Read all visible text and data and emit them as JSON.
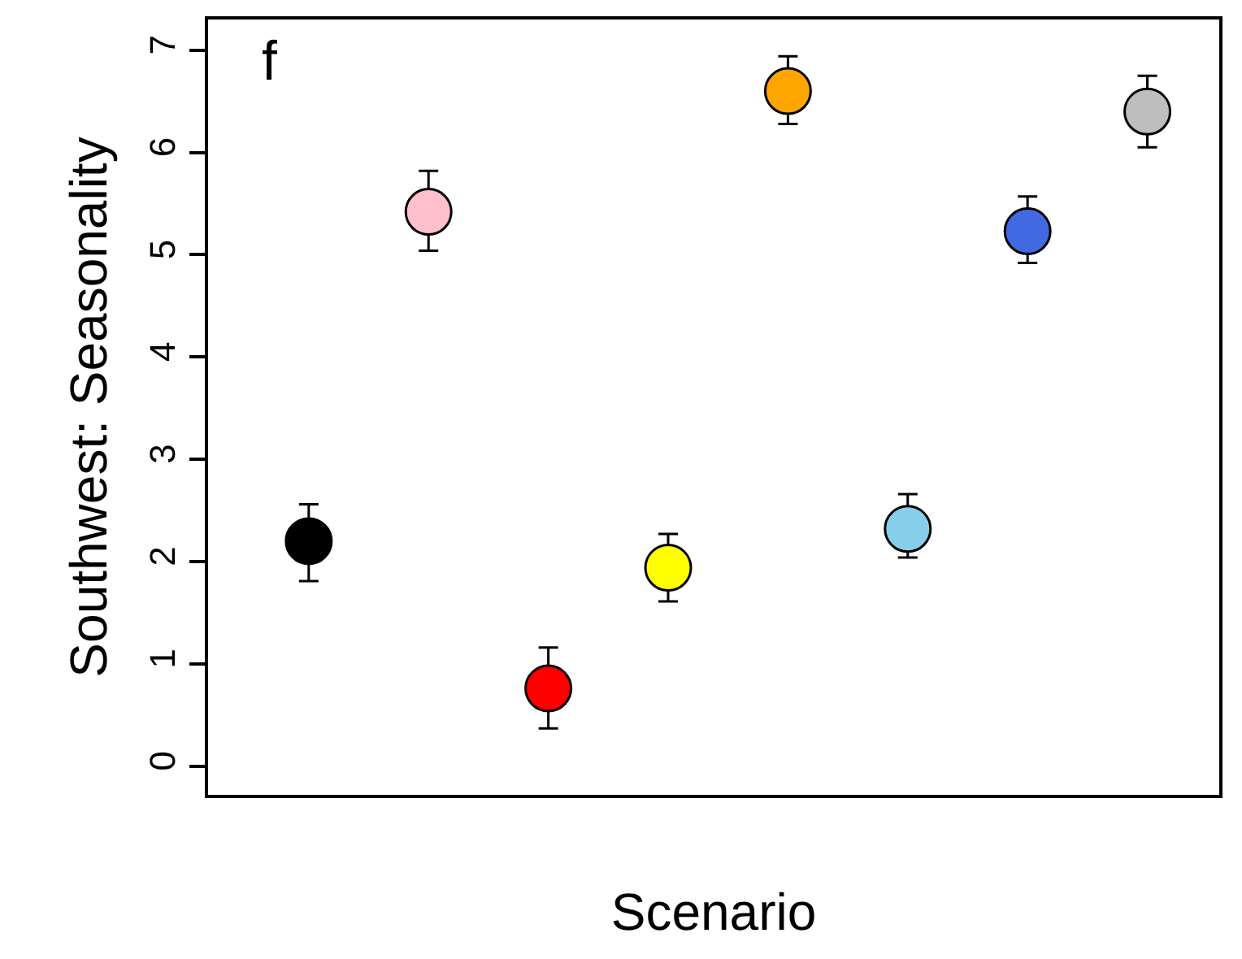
{
  "chart_data": {
    "type": "scatter",
    "ylabel": "Southwest: Seasonality",
    "xlabel": "Scenario",
    "annotations": [
      "f"
    ],
    "categories": [
      null,
      null,
      null,
      null,
      null,
      null,
      null,
      null
    ],
    "values": [
      2.2,
      5.42,
      0.76,
      1.94,
      6.6,
      2.32,
      5.23,
      6.4
    ],
    "errors": [
      [
        1.81,
        2.56
      ],
      [
        5.04,
        5.82
      ],
      [
        0.37,
        1.16
      ],
      [
        1.61,
        2.27
      ],
      [
        6.28,
        6.94
      ],
      [
        2.04,
        2.66
      ],
      [
        4.92,
        5.57
      ],
      [
        6.05,
        6.75
      ]
    ],
    "colors": [
      "#000000",
      "#ffc0cb",
      "#ff0000",
      "#ffff00",
      "#ffa500",
      "#87ceeb",
      "#4169e1",
      "#bebebe"
    ],
    "marker": "circle",
    "ylim": [
      -0.28,
      7.3
    ],
    "yticks": [
      0,
      1,
      2,
      3,
      4,
      5,
      6,
      7
    ],
    "tick_labels": "y"
  }
}
